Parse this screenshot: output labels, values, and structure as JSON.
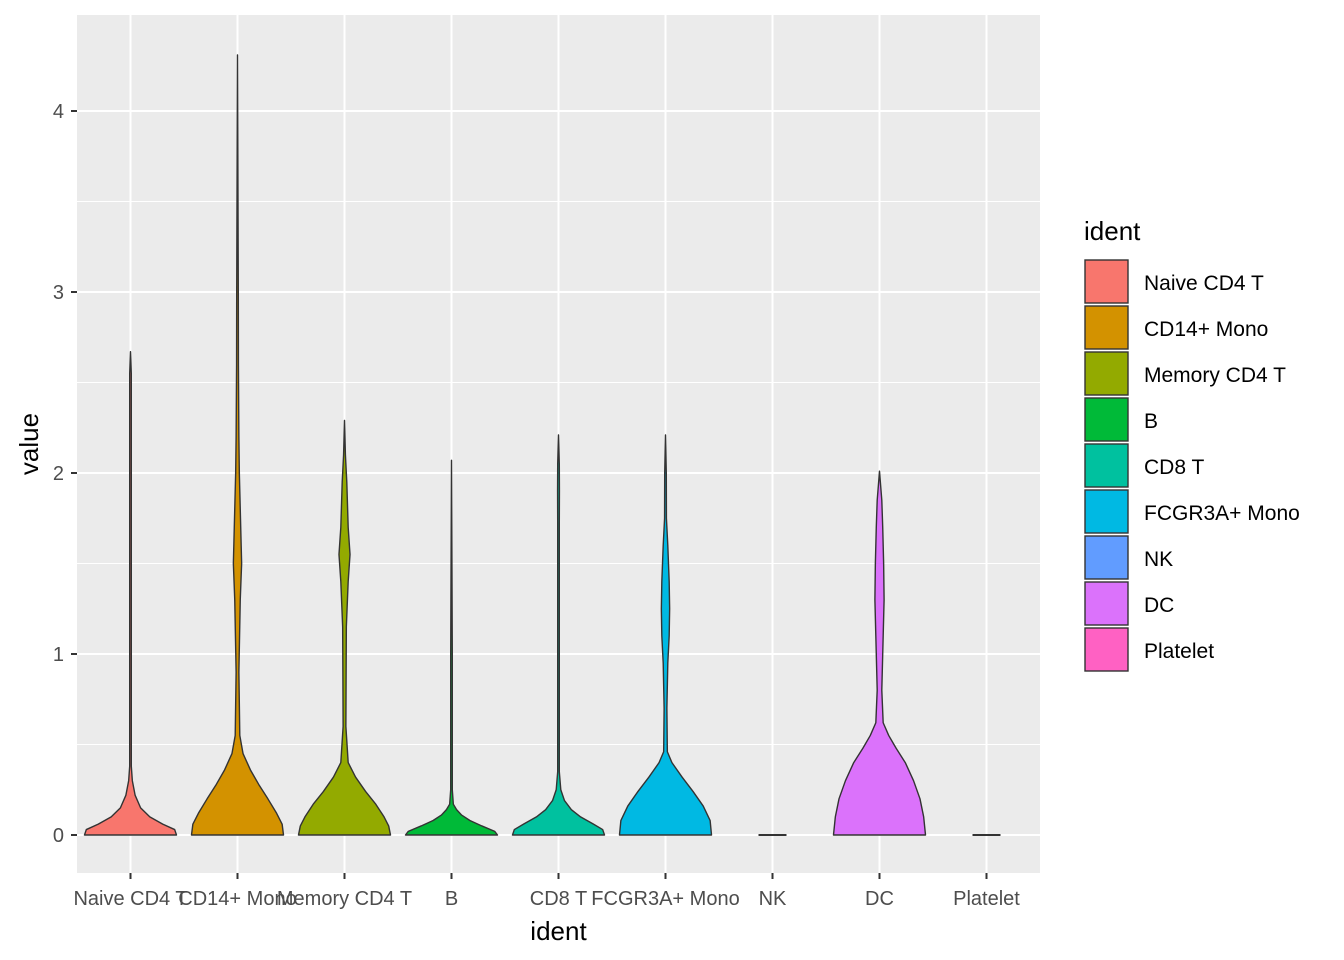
{
  "chart_data": {
    "type": "violin",
    "xlabel": "ident",
    "ylabel": "value",
    "ylim": [
      -0.2,
      4.55
    ],
    "yticks": [
      0,
      1,
      2,
      3,
      4
    ],
    "grid": true,
    "legend": {
      "title": "ident",
      "placement": "right"
    },
    "categories": [
      "Naive CD4 T",
      "CD14+ Mono",
      "Memory CD4 T",
      "B",
      "CD8 T",
      "FCGR3A+ Mono",
      "NK",
      "DC",
      "Platelet"
    ],
    "colors": [
      "#F8766D",
      "#D39200",
      "#93AA00",
      "#00BA38",
      "#00C19F",
      "#00B9E3",
      "#619CFF",
      "#DB72FB",
      "#FF61C3"
    ],
    "series": [
      {
        "name": "Naive CD4 T",
        "max": 2.67,
        "profile": [
          [
            0,
            1.0
          ],
          [
            0.03,
            0.96
          ],
          [
            0.06,
            0.7
          ],
          [
            0.1,
            0.42
          ],
          [
            0.15,
            0.22
          ],
          [
            0.22,
            0.1
          ],
          [
            0.3,
            0.04
          ],
          [
            0.38,
            0.015
          ],
          [
            0.6,
            0.01
          ],
          [
            1.0,
            0.006
          ],
          [
            1.25,
            0.012
          ],
          [
            1.5,
            0.008
          ],
          [
            2.0,
            0.006
          ],
          [
            2.4,
            0.01
          ],
          [
            2.55,
            0.016
          ],
          [
            2.67,
            0.0
          ]
        ]
      },
      {
        "name": "CD14+ Mono",
        "max": 4.31,
        "profile": [
          [
            0,
            1.0
          ],
          [
            0.06,
            0.97
          ],
          [
            0.12,
            0.85
          ],
          [
            0.2,
            0.66
          ],
          [
            0.28,
            0.46
          ],
          [
            0.36,
            0.28
          ],
          [
            0.45,
            0.12
          ],
          [
            0.55,
            0.05
          ],
          [
            0.9,
            0.03
          ],
          [
            1.3,
            0.06
          ],
          [
            1.5,
            0.09
          ],
          [
            1.7,
            0.07
          ],
          [
            2.0,
            0.04
          ],
          [
            2.2,
            0.03
          ],
          [
            2.6,
            0.02
          ],
          [
            3.0,
            0.006
          ],
          [
            4.31,
            0.0
          ]
        ]
      },
      {
        "name": "Memory CD4 T",
        "max": 2.29,
        "profile": [
          [
            0,
            1.0
          ],
          [
            0.05,
            0.96
          ],
          [
            0.1,
            0.86
          ],
          [
            0.17,
            0.68
          ],
          [
            0.24,
            0.46
          ],
          [
            0.32,
            0.24
          ],
          [
            0.4,
            0.08
          ],
          [
            0.6,
            0.03
          ],
          [
            1.15,
            0.04
          ],
          [
            1.4,
            0.08
          ],
          [
            1.55,
            0.12
          ],
          [
            1.7,
            0.08
          ],
          [
            1.95,
            0.05
          ],
          [
            2.1,
            0.02
          ],
          [
            2.29,
            0.0
          ]
        ]
      },
      {
        "name": "B",
        "max": 2.07,
        "profile": [
          [
            0,
            1.0
          ],
          [
            0.02,
            0.94
          ],
          [
            0.05,
            0.66
          ],
          [
            0.08,
            0.4
          ],
          [
            0.11,
            0.22
          ],
          [
            0.14,
            0.11
          ],
          [
            0.17,
            0.04
          ],
          [
            0.25,
            0.015
          ],
          [
            1.0,
            0.006
          ],
          [
            2.07,
            0.0
          ]
        ]
      },
      {
        "name": "CD8 T",
        "max": 2.21,
        "profile": [
          [
            0,
            1.0
          ],
          [
            0.03,
            0.96
          ],
          [
            0.06,
            0.76
          ],
          [
            0.1,
            0.48
          ],
          [
            0.14,
            0.28
          ],
          [
            0.19,
            0.13
          ],
          [
            0.25,
            0.05
          ],
          [
            0.35,
            0.015
          ],
          [
            1.0,
            0.01
          ],
          [
            1.22,
            0.015
          ],
          [
            1.5,
            0.006
          ],
          [
            1.72,
            0.01
          ],
          [
            1.9,
            0.02
          ],
          [
            2.05,
            0.015
          ],
          [
            2.21,
            0.0
          ]
        ]
      },
      {
        "name": "FCGR3A+ Mono",
        "max": 2.21,
        "profile": [
          [
            0,
            1.0
          ],
          [
            0.08,
            0.97
          ],
          [
            0.16,
            0.82
          ],
          [
            0.24,
            0.6
          ],
          [
            0.32,
            0.36
          ],
          [
            0.4,
            0.14
          ],
          [
            0.46,
            0.04
          ],
          [
            0.7,
            0.03
          ],
          [
            0.95,
            0.05
          ],
          [
            1.1,
            0.08
          ],
          [
            1.25,
            0.09
          ],
          [
            1.4,
            0.08
          ],
          [
            1.6,
            0.05
          ],
          [
            1.75,
            0.02
          ],
          [
            2.0,
            0.008
          ],
          [
            2.21,
            0.0
          ]
        ]
      },
      {
        "name": "NK",
        "max": 0.0,
        "profile": [
          [
            0,
            1.0
          ]
        ]
      },
      {
        "name": "DC",
        "max": 2.01,
        "profile": [
          [
            0,
            1.0
          ],
          [
            0.1,
            0.96
          ],
          [
            0.2,
            0.88
          ],
          [
            0.3,
            0.74
          ],
          [
            0.4,
            0.56
          ],
          [
            0.48,
            0.36
          ],
          [
            0.55,
            0.2
          ],
          [
            0.62,
            0.08
          ],
          [
            0.8,
            0.05
          ],
          [
            1.1,
            0.08
          ],
          [
            1.3,
            0.1
          ],
          [
            1.5,
            0.09
          ],
          [
            1.7,
            0.07
          ],
          [
            1.85,
            0.05
          ],
          [
            2.01,
            0.0
          ]
        ]
      },
      {
        "name": "Platelet",
        "max": 0.0,
        "profile": [
          [
            0,
            1.0
          ]
        ]
      }
    ]
  }
}
